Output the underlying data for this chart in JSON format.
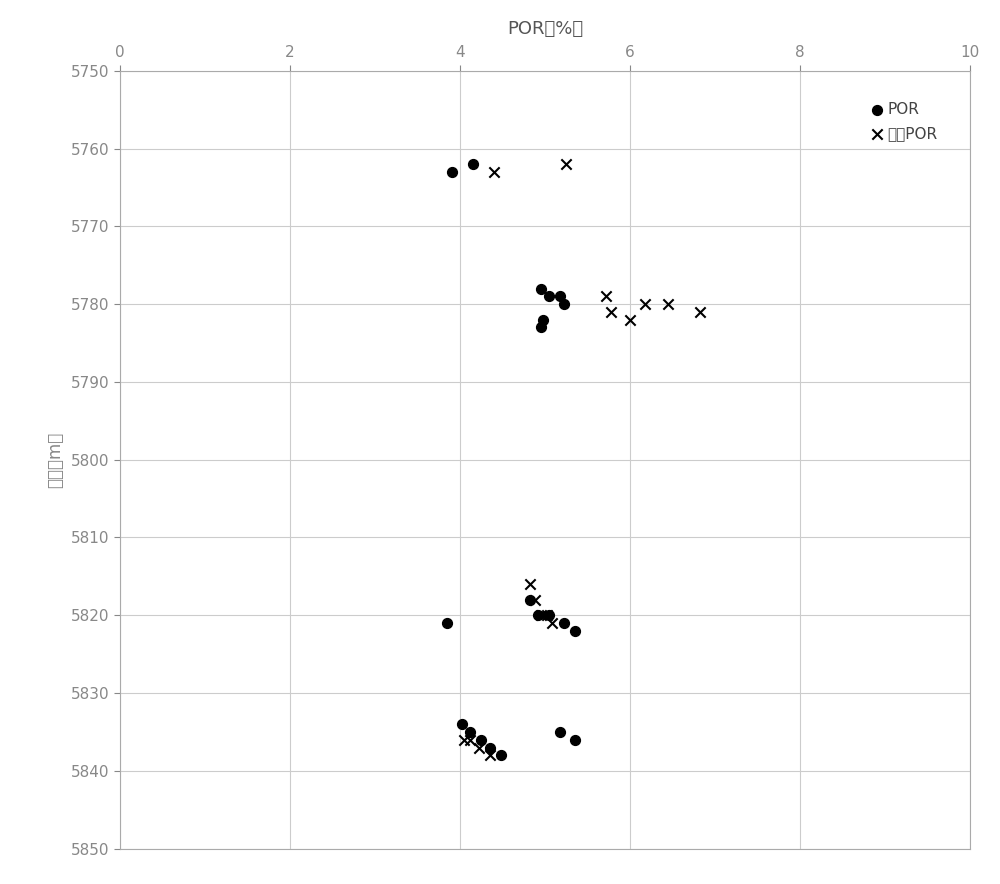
{
  "xlabel": "POR（%）",
  "ylabel": "井深（m）",
  "xlim": [
    0,
    10
  ],
  "ylim": [
    5850,
    5750
  ],
  "xticks": [
    0,
    2,
    4,
    6,
    8,
    10
  ],
  "yticks": [
    5750,
    5760,
    5770,
    5780,
    5790,
    5800,
    5810,
    5820,
    5830,
    5840,
    5850
  ],
  "por_x": [
    3.9,
    4.15,
    4.95,
    5.05,
    5.18,
    5.22,
    4.98,
    4.95,
    3.85,
    4.82,
    4.92,
    5.05,
    5.22,
    5.35,
    4.02,
    4.12,
    4.25,
    4.35,
    4.48,
    5.18,
    5.35
  ],
  "por_y": [
    5763,
    5762,
    5778,
    5779,
    5779,
    5780,
    5782,
    5783,
    5821,
    5818,
    5820,
    5820,
    5821,
    5822,
    5834,
    5835,
    5836,
    5837,
    5838,
    5835,
    5836
  ],
  "calc_x": [
    4.4,
    5.25,
    5.72,
    6.18,
    6.45,
    6.82,
    5.78,
    6.0,
    4.82,
    4.88,
    4.95,
    5.02,
    5.08,
    4.05,
    4.12,
    4.22,
    4.35
  ],
  "calc_y": [
    5763,
    5762,
    5779,
    5780,
    5780,
    5781,
    5781,
    5782,
    5816,
    5818,
    5820,
    5820,
    5821,
    5836,
    5836,
    5837,
    5838
  ],
  "legend_por": "POR",
  "legend_calc": "计算POR",
  "dot_color": "#000000",
  "cross_color": "#000000",
  "dot_size": 50,
  "cross_size": 55,
  "grid_color": "#cccccc",
  "bg_color": "#ffffff",
  "tick_label_color": "#888888",
  "label_color": "#555555",
  "spine_color": "#aaaaaa",
  "legend_text_color": "#444444",
  "xlabel_fontsize": 13,
  "ylabel_fontsize": 12,
  "tick_fontsize": 11,
  "legend_fontsize": 11
}
